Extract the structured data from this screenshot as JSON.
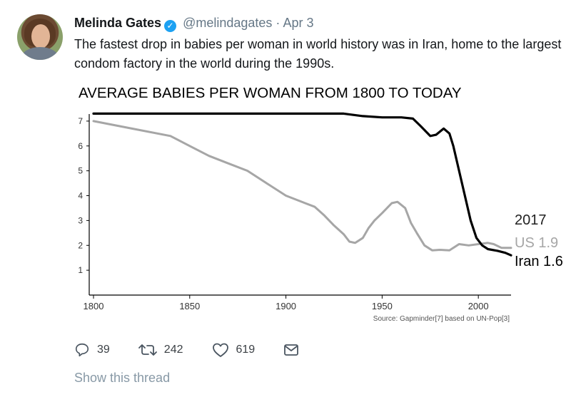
{
  "tweet": {
    "author_name": "Melinda Gates",
    "handle": "@melindagates",
    "separator": "·",
    "date": "Apr 3",
    "text": "The fastest drop in babies per woman in world history was in Iran, home to the largest condom factory in the world during the 1990s.",
    "icons": {
      "avatar": "profile-photo",
      "verified": "verified-badge-icon",
      "reply": "reply-icon",
      "retweet": "retweet-icon",
      "like": "heart-icon",
      "message": "direct-message-icon"
    },
    "colors": {
      "verified": "#1da1f2",
      "meta": "#657786",
      "thread_link": "#8899a6"
    }
  },
  "chart_data": {
    "type": "line",
    "title": "AVERAGE BABIES PER WOMAN FROM 1800 TO TODAY",
    "source": "Source: Gapminder[7] based on UN-Pop[3]",
    "xlim": [
      1800,
      2017
    ],
    "ylim": [
      0,
      7.8
    ],
    "xticks": [
      1800,
      1850,
      1900,
      1950,
      2000
    ],
    "yticks": [
      1,
      2,
      3,
      4,
      5,
      6,
      7
    ],
    "annotation_year": "2017",
    "series": [
      {
        "label": "Iran 1.6",
        "color": "#000000",
        "points": [
          [
            1800,
            7.3
          ],
          [
            1850,
            7.3
          ],
          [
            1900,
            7.3
          ],
          [
            1930,
            7.3
          ],
          [
            1940,
            7.2
          ],
          [
            1950,
            7.15
          ],
          [
            1960,
            7.15
          ],
          [
            1966,
            7.1
          ],
          [
            1970,
            6.8
          ],
          [
            1975,
            6.4
          ],
          [
            1978,
            6.45
          ],
          [
            1982,
            6.7
          ],
          [
            1985,
            6.5
          ],
          [
            1987,
            6.0
          ],
          [
            1990,
            5.0
          ],
          [
            1993,
            4.0
          ],
          [
            1996,
            3.0
          ],
          [
            1999,
            2.3
          ],
          [
            2002,
            2.0
          ],
          [
            2005,
            1.85
          ],
          [
            2010,
            1.78
          ],
          [
            2014,
            1.7
          ],
          [
            2017,
            1.6
          ]
        ]
      },
      {
        "label": "US 1.9",
        "color": "#a6a6a6",
        "points": [
          [
            1800,
            7.0
          ],
          [
            1820,
            6.7
          ],
          [
            1840,
            6.4
          ],
          [
            1850,
            6.0
          ],
          [
            1860,
            5.6
          ],
          [
            1870,
            5.3
          ],
          [
            1880,
            5.0
          ],
          [
            1890,
            4.5
          ],
          [
            1900,
            4.0
          ],
          [
            1910,
            3.7
          ],
          [
            1915,
            3.55
          ],
          [
            1920,
            3.2
          ],
          [
            1925,
            2.8
          ],
          [
            1930,
            2.45
          ],
          [
            1933,
            2.15
          ],
          [
            1936,
            2.1
          ],
          [
            1940,
            2.3
          ],
          [
            1943,
            2.7
          ],
          [
            1946,
            3.0
          ],
          [
            1950,
            3.3
          ],
          [
            1955,
            3.7
          ],
          [
            1958,
            3.75
          ],
          [
            1962,
            3.5
          ],
          [
            1965,
            2.9
          ],
          [
            1968,
            2.5
          ],
          [
            1972,
            2.0
          ],
          [
            1976,
            1.8
          ],
          [
            1980,
            1.82
          ],
          [
            1985,
            1.8
          ],
          [
            1990,
            2.05
          ],
          [
            1995,
            2.0
          ],
          [
            2000,
            2.05
          ],
          [
            2005,
            2.1
          ],
          [
            2008,
            2.05
          ],
          [
            2012,
            1.9
          ],
          [
            2017,
            1.9
          ]
        ]
      }
    ]
  },
  "actions": {
    "reply_count": "39",
    "retweet_count": "242",
    "like_count": "619"
  },
  "show_thread": "Show this thread"
}
